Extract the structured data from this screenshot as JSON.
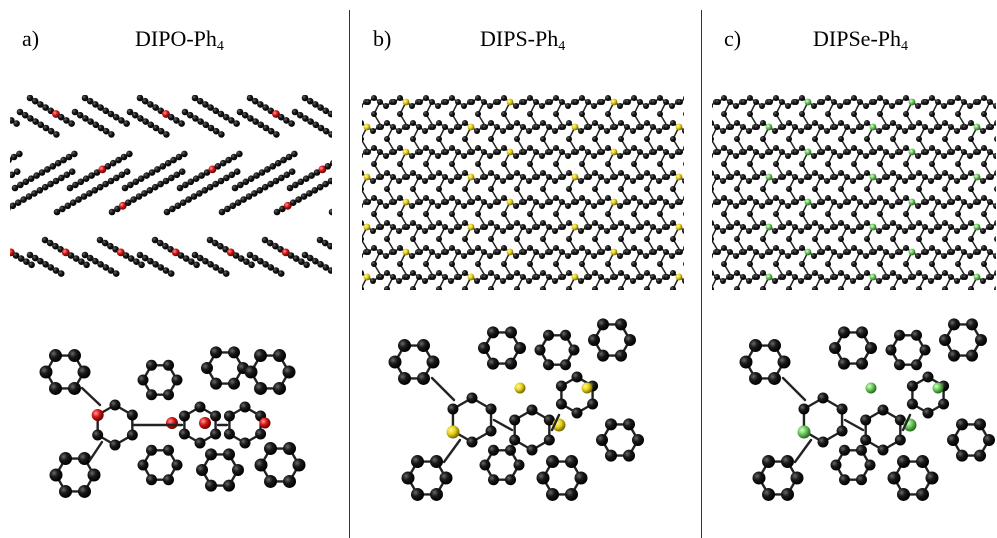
{
  "panels": [
    {
      "label": "a)",
      "title_base": "DIPO-Ph",
      "title_sub": "4",
      "heteroatom_color": "#d41414",
      "packing_style": "herringbone"
    },
    {
      "label": "b)",
      "title_base": "DIPS-Ph",
      "title_sub": "4",
      "heteroatom_color": "#e6d21a",
      "packing_style": "interlocked"
    },
    {
      "label": "c)",
      "title_base": "DIPSe-Ph",
      "title_sub": "4",
      "heteroatom_color": "#6cc95a",
      "packing_style": "interlocked"
    }
  ],
  "atom_color": "#111111"
}
